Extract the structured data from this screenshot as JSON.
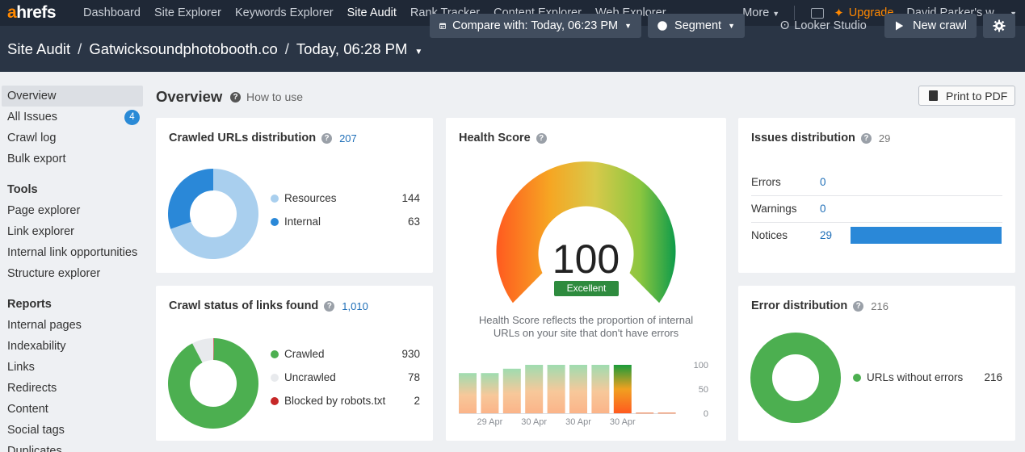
{
  "nav": {
    "logo_a": "a",
    "logo_rest": "hrefs",
    "links": [
      "Dashboard",
      "Site Explorer",
      "Keywords Explorer",
      "Site Audit",
      "Rank Tracker",
      "Content Explorer",
      "Web Explorer"
    ],
    "active": "Site Audit",
    "more": "More",
    "upgrade": "Upgrade",
    "user": "David Parker's w..."
  },
  "header": {
    "section": "Site Audit",
    "project": "Gatwicksoundphotobooth.co",
    "crawl": "Today, 06:28 PM",
    "compare": "Compare with: Today, 06:23 PM",
    "segment": "Segment",
    "looker": "Looker Studio",
    "new_crawl": "New crawl"
  },
  "sidebar": {
    "overview": "Overview",
    "all_issues": "All Issues",
    "all_issues_badge": "4",
    "crawl_log": "Crawl log",
    "bulk_export": "Bulk export",
    "tools_head": "Tools",
    "tools": [
      "Page explorer",
      "Link explorer",
      "Internal link opportunities",
      "Structure explorer"
    ],
    "reports_head": "Reports",
    "reports": [
      "Internal pages",
      "Indexability",
      "Links",
      "Redirects",
      "Content",
      "Social tags",
      "Duplicates"
    ]
  },
  "main": {
    "title": "Overview",
    "how_to": "How to use",
    "print": "Print to PDF"
  },
  "crawled_urls": {
    "title": "Crawled URLs distribution",
    "total": "207",
    "items": [
      {
        "label": "Resources",
        "value": 144,
        "color": "#a9cfee"
      },
      {
        "label": "Internal",
        "value": 63,
        "color": "#2a88d8"
      }
    ]
  },
  "crawl_status": {
    "title": "Crawl status of links found",
    "total": "1,010",
    "items": [
      {
        "label": "Crawled",
        "value": 930,
        "color": "#4caf50"
      },
      {
        "label": "Uncrawled",
        "value": 78,
        "color": "#e8eaed"
      },
      {
        "label": "Blocked by robots.txt",
        "value": 2,
        "color": "#c62828"
      }
    ]
  },
  "health": {
    "title": "Health Score",
    "score": "100",
    "rating": "Excellent",
    "desc_line1": "Health Score reflects the proportion of internal",
    "desc_line2": "URLs on your site that don't have errors",
    "chart_data": {
      "type": "bar",
      "categories": [
        "",
        "29 Apr",
        "",
        "30 Apr",
        "",
        "30 Apr",
        "",
        "30 Apr",
        "",
        ""
      ],
      "values": [
        83,
        83,
        92,
        100,
        100,
        100,
        100,
        100,
        0,
        0
      ],
      "highlight_index": 7,
      "ylim": [
        0,
        100
      ],
      "yticks": [
        0,
        50,
        100
      ]
    }
  },
  "issues": {
    "title": "Issues distribution",
    "total": "29",
    "rows": [
      {
        "label": "Errors",
        "value": 0
      },
      {
        "label": "Warnings",
        "value": 0
      },
      {
        "label": "Notices",
        "value": 29
      }
    ]
  },
  "error_dist": {
    "title": "Error distribution",
    "total": "216",
    "items": [
      {
        "label": "URLs without errors",
        "value": 216,
        "color": "#4caf50"
      }
    ]
  }
}
